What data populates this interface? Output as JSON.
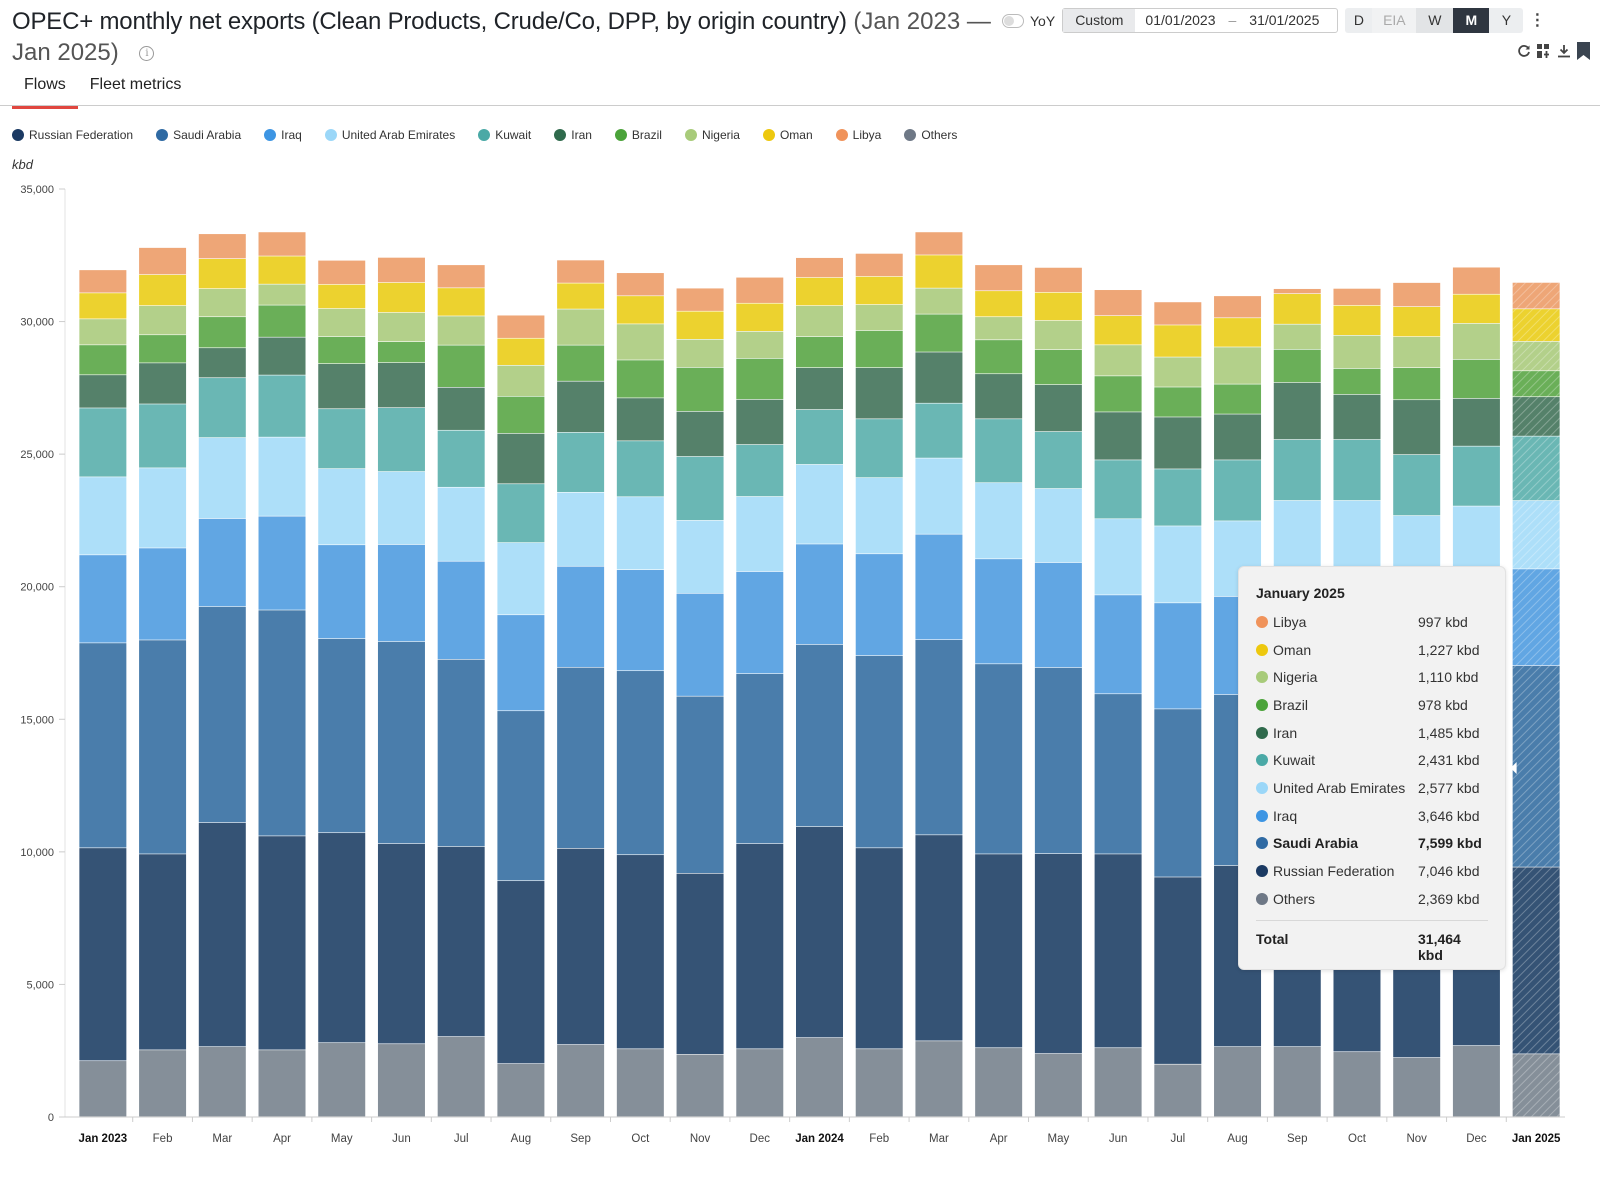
{
  "header": {
    "title": "OPEC+ monthly net exports (Clean Products, Crude/Co, DPP, by origin country)",
    "range": "(Jan 2023 — Jan 2025)",
    "info_icon": "info-icon"
  },
  "tabs": [
    {
      "label": "Flows",
      "active": true
    },
    {
      "label": "Fleet metrics",
      "active": false
    }
  ],
  "controls": {
    "yoy_label": "YoY",
    "yoy_on": false,
    "custom_label": "Custom",
    "start_date": "01/01/2023",
    "date_sep": "–",
    "end_date": "31/01/2025",
    "periods": [
      "D",
      "EIA",
      "W",
      "M",
      "Y"
    ],
    "active_period": "M",
    "more_icon": "more-vertical-icon",
    "actions": [
      "refresh-icon",
      "add-widget-icon",
      "download-icon",
      "bookmark-icon"
    ]
  },
  "chart_data": {
    "type": "bar",
    "stacked": true,
    "title": "OPEC+ monthly net exports (Clean Products, Crude/Co, DPP, by origin country)",
    "xlabel": "",
    "ylabel": "kbd",
    "ylim": [
      0,
      35000
    ],
    "yticks": [
      0,
      5000,
      10000,
      15000,
      20000,
      25000,
      30000,
      35000
    ],
    "ytick_labels": [
      "0",
      "5,000",
      "10,000",
      "15,000",
      "20,000",
      "25,000",
      "30,000",
      "35,000"
    ],
    "legend_position": "top-left",
    "grid": false,
    "categories": [
      "Jan 2023",
      "Feb",
      "Mar",
      "Apr",
      "May",
      "Jun",
      "Jul",
      "Aug",
      "Sep",
      "Oct",
      "Nov",
      "Dec",
      "Jan 2024",
      "Feb",
      "Mar",
      "Apr",
      "May",
      "Jun",
      "Jul",
      "Aug",
      "Sep",
      "Oct",
      "Nov",
      "Dec",
      "Jan 2025"
    ],
    "bold_categories": [
      "Jan 2023",
      "Jan 2024",
      "Jan 2025"
    ],
    "hatched_categories": [
      "Jan 2025"
    ],
    "series": [
      {
        "name": "Others",
        "color": "#858f99",
        "values": [
          2110,
          2520,
          2640,
          2520,
          2790,
          2750,
          3020,
          2000,
          2720,
          2560,
          2350,
          2560,
          2980,
          2560,
          2860,
          2600,
          2380,
          2600,
          1980,
          2640,
          2640,
          2450,
          2230,
          2680,
          2369
        ]
      },
      {
        "name": "Russian Federation",
        "color": "#355375",
        "values": [
          8030,
          7390,
          8450,
          8070,
          7920,
          7550,
          7170,
          6900,
          7400,
          7320,
          6830,
          7740,
          7960,
          7580,
          7770,
          7310,
          7540,
          7310,
          7060,
          6830,
          7000,
          7170,
          7200,
          7170,
          7046
        ]
      },
      {
        "name": "Saudi Arabia",
        "color": "#4a7dab",
        "values": [
          7730,
          8070,
          8150,
          8520,
          7320,
          7620,
          7060,
          6410,
          6830,
          6940,
          6680,
          6410,
          6870,
          7250,
          7360,
          7170,
          7020,
          6040,
          6340,
          6450,
          7000,
          7170,
          6790,
          6680,
          7599
        ]
      },
      {
        "name": "Iraq",
        "color": "#61a6e3",
        "values": [
          3320,
          3470,
          3320,
          3540,
          3540,
          3660,
          3700,
          3620,
          3810,
          3810,
          3880,
          3850,
          3790,
          3840,
          3980,
          3960,
          3960,
          3730,
          4000,
          3700,
          3800,
          3700,
          3700,
          3700,
          3646
        ]
      },
      {
        "name": "United Arab Emirates",
        "color": "#addff9",
        "values": [
          2940,
          3020,
          3050,
          2980,
          2870,
          2750,
          2790,
          2720,
          2790,
          2750,
          2750,
          2830,
          3000,
          2870,
          2870,
          2870,
          2790,
          2870,
          2900,
          2850,
          2800,
          2750,
          2750,
          2800,
          2577
        ]
      },
      {
        "name": "Kuwait",
        "color": "#6ab7b4",
        "values": [
          2600,
          2410,
          2260,
          2340,
          2260,
          2410,
          2150,
          2220,
          2260,
          2110,
          2410,
          1960,
          2070,
          2220,
          2070,
          2410,
          2150,
          2220,
          2150,
          2300,
          2300,
          2300,
          2300,
          2260,
          2431
        ]
      },
      {
        "name": "Iran",
        "color": "#55816a",
        "values": [
          1250,
          1550,
          1130,
          1430,
          1700,
          1700,
          1620,
          1900,
          1930,
          1620,
          1700,
          1700,
          1580,
          1930,
          1930,
          1700,
          1770,
          1810,
          1960,
          1730,
          2150,
          1700,
          2070,
          1800,
          1485
        ]
      },
      {
        "name": "Brazil",
        "color": "#6aaf58",
        "values": [
          1130,
          1060,
          1170,
          1210,
          1020,
          790,
          1590,
          1400,
          1360,
          1430,
          1660,
          1550,
          1170,
          1400,
          1430,
          1280,
          1320,
          1360,
          1130,
          1130,
          1250,
          980,
          1210,
          1470,
          978
        ]
      },
      {
        "name": "Nigeria",
        "color": "#b3d08a",
        "values": [
          980,
          1100,
          1060,
          790,
          1060,
          1100,
          1100,
          1170,
          1360,
          1360,
          1060,
          1020,
          1170,
          980,
          980,
          870,
          1100,
          1170,
          1130,
          1400,
          950,
          1250,
          1170,
          1360,
          1110
        ]
      },
      {
        "name": "Oman",
        "color": "#ecd22f",
        "values": [
          980,
          1170,
          1130,
          1060,
          910,
          1130,
          1060,
          1020,
          980,
          1060,
          1060,
          1060,
          1060,
          1060,
          1250,
          980,
          1060,
          1100,
          1210,
          1100,
          1150,
          1130,
          1130,
          1100,
          1227
        ]
      },
      {
        "name": "Libya",
        "color": "#eea677",
        "values": [
          870,
          1020,
          940,
          910,
          910,
          950,
          870,
          870,
          870,
          870,
          870,
          980,
          750,
          870,
          870,
          980,
          940,
          980,
          870,
          830,
          190,
          640,
          910,
          1020,
          997
        ]
      }
    ]
  },
  "legend": [
    {
      "label": "Russian Federation",
      "color": "#1b3a63"
    },
    {
      "label": "Saudi Arabia",
      "color": "#2f6aa3"
    },
    {
      "label": "Iraq",
      "color": "#3d95e3"
    },
    {
      "label": "United Arab Emirates",
      "color": "#9bd7f8"
    },
    {
      "label": "Kuwait",
      "color": "#4aa9a6"
    },
    {
      "label": "Iran",
      "color": "#2f6a4c"
    },
    {
      "label": "Brazil",
      "color": "#4ba33a"
    },
    {
      "label": "Nigeria",
      "color": "#a8cb7a"
    },
    {
      "label": "Oman",
      "color": "#edc80e"
    },
    {
      "label": "Libya",
      "color": "#f0935b"
    },
    {
      "label": "Others",
      "color": "#6e7886"
    }
  ],
  "unit_label": "kbd",
  "tooltip": {
    "title": "January 2025",
    "rows": [
      {
        "name": "Libya",
        "value": "997 kbd",
        "color": "#f0935b",
        "bold": false
      },
      {
        "name": "Oman",
        "value": "1,227 kbd",
        "color": "#edc80e",
        "bold": false
      },
      {
        "name": "Nigeria",
        "value": "1,110 kbd",
        "color": "#a8cb7a",
        "bold": false
      },
      {
        "name": "Brazil",
        "value": "978 kbd",
        "color": "#4ba33a",
        "bold": false
      },
      {
        "name": "Iran",
        "value": "1,485 kbd",
        "color": "#2f6a4c",
        "bold": false
      },
      {
        "name": "Kuwait",
        "value": "2,431 kbd",
        "color": "#4aa9a6",
        "bold": false
      },
      {
        "name": "United Arab Emirates",
        "value": "2,577 kbd",
        "color": "#9bd7f8",
        "bold": false
      },
      {
        "name": "Iraq",
        "value": "3,646 kbd",
        "color": "#3d95e3",
        "bold": false
      },
      {
        "name": "Saudi Arabia",
        "value": "7,599 kbd",
        "color": "#2f6aa3",
        "bold": true
      },
      {
        "name": "Russian Federation",
        "value": "7,046 kbd",
        "color": "#1b3a63",
        "bold": false
      },
      {
        "name": "Others",
        "value": "2,369 kbd",
        "color": "#6e7886",
        "bold": false
      }
    ],
    "total_label": "Total",
    "total_value": "31,464 kbd"
  }
}
